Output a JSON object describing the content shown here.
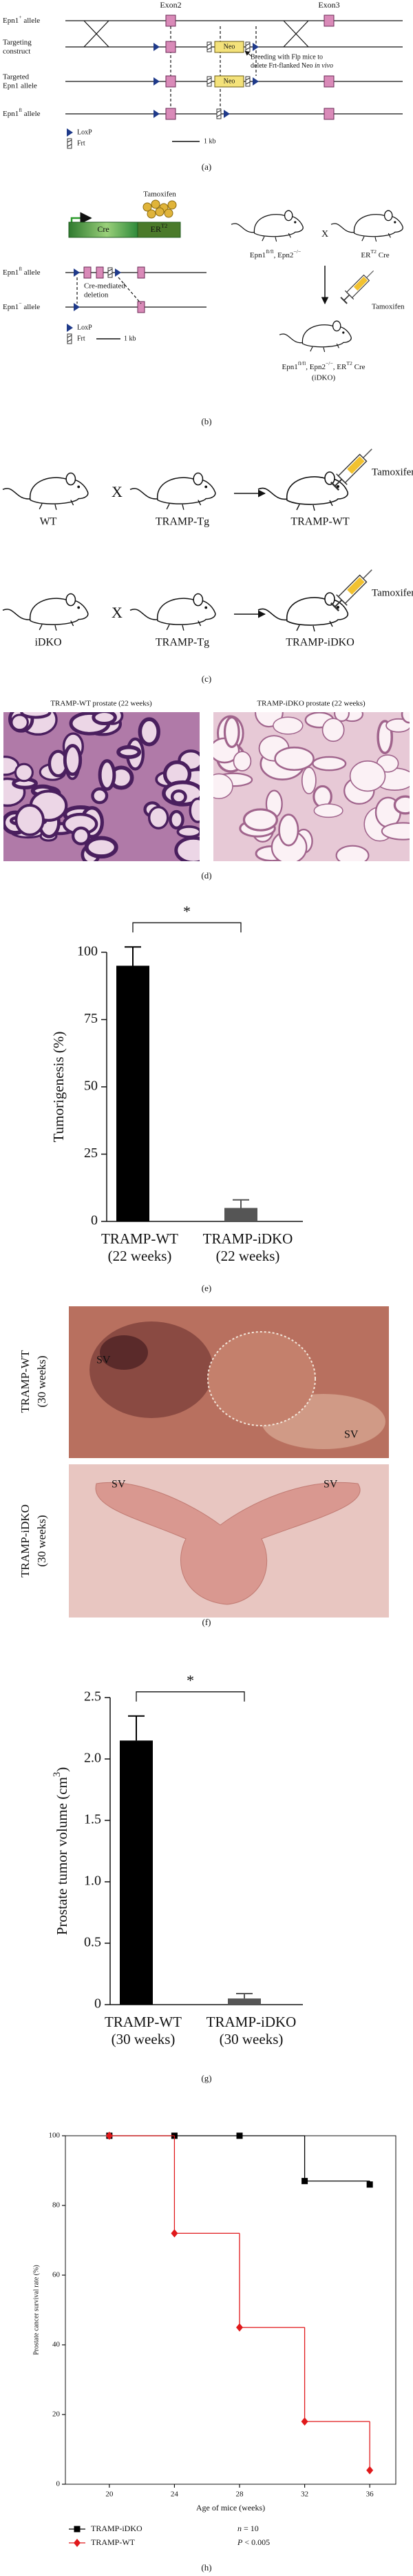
{
  "panel_a": {
    "exon2": "Exon2",
    "exon3": "Exon3",
    "wt_allele": [
      "Epn1",
      "+",
      " allele"
    ],
    "construct": [
      "Targeting",
      "construct"
    ],
    "neo": "Neo",
    "breeding": [
      "Breeding with Flp mice to",
      "delete Frt-flanked Neo ",
      "in vivo"
    ],
    "targeted": [
      "Targeted",
      "Epn1 allele"
    ],
    "fl_allele": [
      "Epn1",
      "fl",
      " allele"
    ],
    "loxp": "LoxP",
    "frt": "Frt",
    "scale": "1 kb",
    "label": "(a)"
  },
  "panel_b": {
    "tamoxifen": "Tamoxifen",
    "cre": "Cre",
    "er": [
      "ER",
      "T2"
    ],
    "fl_allele": [
      "Epn1",
      "fl",
      " allele"
    ],
    "null_allele": [
      "Epn1",
      "−",
      " allele"
    ],
    "deletion": [
      "Cre-mediated",
      "deletion"
    ],
    "loxp": "LoxP",
    "frt": "Frt",
    "scale": "1 kb",
    "parent1": [
      "Epn1",
      "fl/fl",
      ", Epn2",
      "−/−"
    ],
    "cross": "X",
    "parent2": [
      "ER",
      "T2",
      " Cre"
    ],
    "tamoxifen2": "Tamoxifen",
    "offspring": [
      "Epn1",
      "fl/fl",
      ", Epn2",
      "−/−",
      ", ER",
      "T2",
      " Cre"
    ],
    "offspring_name": "(iDKO)",
    "label": "(b)"
  },
  "panel_c": {
    "rows": [
      {
        "parent1": "WT",
        "cross": "X",
        "parent2": "TRAMP-Tg",
        "offspring": "TRAMP-WT",
        "treatment": "Tamoxifen"
      },
      {
        "parent1": "iDKO",
        "cross": "X",
        "parent2": "TRAMP-Tg",
        "offspring": "TRAMP-iDKO",
        "treatment": "Tamoxifen"
      }
    ],
    "label": "(c)"
  },
  "panel_d": {
    "titles": [
      "TRAMP-WT prostate (22 weeks)",
      "TRAMP-iDKO prostate (22 weeks)"
    ],
    "label": "(d)"
  },
  "panel_f": {
    "photos": [
      {
        "title": [
          "TRAMP-WT",
          "(30 weeks)"
        ],
        "marks": [
          "SV",
          "SV"
        ]
      },
      {
        "title": [
          "TRAMP-iDKO",
          "(30 weeks)"
        ],
        "marks": [
          "SV",
          "SV"
        ]
      }
    ],
    "label": "(f)"
  },
  "chart_data": [
    {
      "type": "bar",
      "label": "(e)",
      "ylabel": [
        "Tumorigenesis (%)"
      ],
      "categories": [
        [
          "TRAMP-WT",
          "(22 weeks)"
        ],
        [
          "TRAMP-iDKO",
          "(22 weeks)"
        ]
      ],
      "values": [
        95,
        5
      ],
      "errors": [
        7,
        3
      ],
      "colors": [
        "#000000",
        "#555555"
      ],
      "ylim": [
        0,
        100
      ],
      "yticks": [
        0,
        25,
        50,
        75,
        100
      ],
      "significance": "*"
    },
    {
      "type": "bar",
      "label": "(g)",
      "ylabel": [
        "Prostate tumor volume (cm",
        "3",
        ")"
      ],
      "categories": [
        [
          "TRAMP-WT",
          "(30 weeks)"
        ],
        [
          "TRAMP-iDKO",
          "(30 weeks)"
        ]
      ],
      "values": [
        2.15,
        0.05
      ],
      "errors": [
        0.2,
        0.04
      ],
      "colors": [
        "#000000",
        "#555555"
      ],
      "ylim": [
        0,
        2.5
      ],
      "yticks": [
        0,
        0.5,
        {
          "value": 1,
          "label": "1.0"
        },
        1.5,
        {
          "value": 2,
          "label": "2.0"
        },
        2.5
      ],
      "significance": "*"
    },
    {
      "type": "line",
      "step": true,
      "label": "(h)",
      "xlabel": "Age of mice (weeks)",
      "ylabel": "Prostate cancer survival rate (%)",
      "x": [
        20,
        24,
        28,
        32,
        36
      ],
      "xlim": [
        17.3,
        37.6
      ],
      "xticks": [
        20,
        24,
        28,
        32,
        36
      ],
      "ylim": [
        0,
        100
      ],
      "yticks": [
        0,
        20,
        40,
        60,
        80,
        100
      ],
      "series": [
        {
          "name": "TRAMP-iDKO",
          "color": "#000000",
          "marker": "square",
          "values": [
            100,
            100,
            100,
            87,
            86
          ]
        },
        {
          "name": "TRAMP-WT",
          "color": "#e0191b",
          "marker": "diamond",
          "values": [
            100,
            72,
            45,
            18,
            4
          ]
        }
      ],
      "annotations": [
        [
          "n",
          " = 10"
        ],
        [
          "P",
          " < 0.005"
        ]
      ]
    }
  ]
}
